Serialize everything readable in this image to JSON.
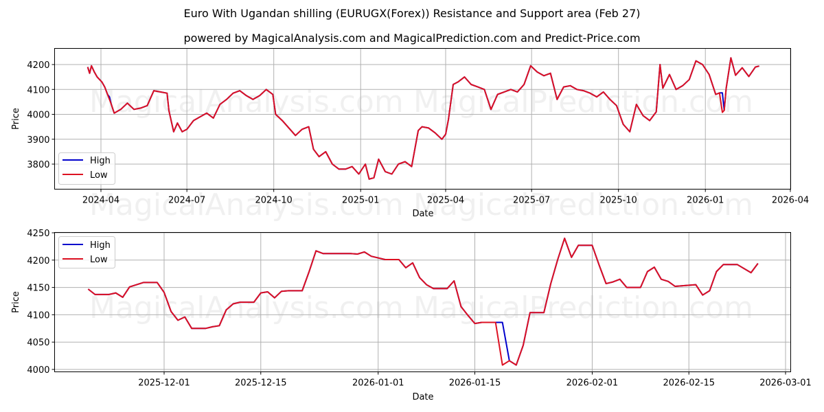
{
  "header": {
    "title": "Euro With Ugandan shilling (EURUGX(Forex)) Resistance and Support area (Feb 27)",
    "subtitle": "powered by MagicalAnalysis.com and MagicalPrediction.com and Predict-Price.com"
  },
  "watermarks": [
    "MagicalAnalysis.com",
    "MagicalPrediction.com"
  ],
  "colors": {
    "high": "#0000cc",
    "low": "#dd1122",
    "grid": "#b0b0b0"
  },
  "chart_data": [
    {
      "type": "line",
      "title": "Euro With Ugandan shilling (EURUGX(Forex)) Resistance and Support area (Feb 27)",
      "xlabel": "Date",
      "ylabel": "Price",
      "ylim": [
        3700,
        4270
      ],
      "xlim": [
        "2024-02-15",
        "2026-04-01"
      ],
      "grid": true,
      "legend_position": "lower left",
      "x_ticks": [
        "2024-04",
        "2024-07",
        "2024-10",
        "2025-01",
        "2025-04",
        "2025-07",
        "2025-10",
        "2026-01",
        "2026-04"
      ],
      "y_ticks": [
        3800,
        3900,
        4000,
        4100,
        4200
      ],
      "legend": [
        "High",
        "Low"
      ],
      "x": [
        "2024-03-18",
        "2024-03-20",
        "2024-03-22",
        "2024-03-25",
        "2024-03-28",
        "2024-04-02",
        "2024-04-05",
        "2024-04-08",
        "2024-04-10",
        "2024-04-12",
        "2024-04-15",
        "2024-04-22",
        "2024-04-29",
        "2024-05-06",
        "2024-05-13",
        "2024-05-20",
        "2024-05-27",
        "2024-06-03",
        "2024-06-10",
        "2024-06-12",
        "2024-06-17",
        "2024-06-21",
        "2024-06-26",
        "2024-07-01",
        "2024-07-08",
        "2024-07-15",
        "2024-07-22",
        "2024-07-29",
        "2024-08-05",
        "2024-08-12",
        "2024-08-19",
        "2024-08-26",
        "2024-09-02",
        "2024-09-09",
        "2024-09-16",
        "2024-09-23",
        "2024-09-30",
        "2024-10-03",
        "2024-10-10",
        "2024-10-17",
        "2024-10-24",
        "2024-10-31",
        "2024-11-07",
        "2024-11-12",
        "2024-11-18",
        "2024-11-25",
        "2024-12-02",
        "2024-12-09",
        "2024-12-16",
        "2024-12-23",
        "2024-12-30",
        "2025-01-06",
        "2025-01-10",
        "2025-01-15",
        "2025-01-20",
        "2025-01-27",
        "2025-02-03",
        "2025-02-10",
        "2025-02-17",
        "2025-02-24",
        "2025-03-03",
        "2025-03-07",
        "2025-03-14",
        "2025-03-21",
        "2025-03-28",
        "2025-04-01",
        "2025-04-04",
        "2025-04-09",
        "2025-04-14",
        "2025-04-21",
        "2025-04-28",
        "2025-05-05",
        "2025-05-12",
        "2025-05-19",
        "2025-05-26",
        "2025-06-02",
        "2025-06-09",
        "2025-06-16",
        "2025-06-23",
        "2025-06-30",
        "2025-07-07",
        "2025-07-14",
        "2025-07-21",
        "2025-07-28",
        "2025-08-04",
        "2025-08-11",
        "2025-08-18",
        "2025-08-25",
        "2025-09-01",
        "2025-09-08",
        "2025-09-15",
        "2025-09-22",
        "2025-09-29",
        "2025-10-06",
        "2025-10-13",
        "2025-10-20",
        "2025-10-27",
        "2025-11-03",
        "2025-11-10",
        "2025-11-14",
        "2025-11-17",
        "2025-11-24",
        "2025-12-01",
        "2025-12-08",
        "2025-12-15",
        "2025-12-22",
        "2025-12-29",
        "2026-01-05",
        "2026-01-12",
        "2026-01-16",
        "2026-01-19",
        "2026-01-21",
        "2026-01-23",
        "2026-01-28",
        "2026-02-02",
        "2026-02-09",
        "2026-02-16",
        "2026-02-23",
        "2026-02-27"
      ],
      "series": [
        {
          "name": "High",
          "values": [
            4190,
            4165,
            4195,
            4170,
            4150,
            4130,
            4110,
            4080,
            4070,
            4040,
            4005,
            4020,
            4045,
            4020,
            4025,
            4035,
            4095,
            4090,
            4085,
            4015,
            3930,
            3965,
            3930,
            3940,
            3975,
            3990,
            4005,
            3985,
            4040,
            4060,
            4085,
            4095,
            4075,
            4060,
            4075,
            4100,
            4080,
            4000,
            3975,
            3945,
            3915,
            3940,
            3950,
            3860,
            3830,
            3850,
            3800,
            3780,
            3780,
            3790,
            3760,
            3800,
            3740,
            3745,
            3820,
            3770,
            3760,
            3800,
            3810,
            3790,
            3935,
            3950,
            3945,
            3925,
            3900,
            3920,
            3980,
            4120,
            4130,
            4150,
            4120,
            4110,
            4100,
            4020,
            4080,
            4090,
            4100,
            4090,
            4120,
            4195,
            4170,
            4155,
            4165,
            4060,
            4110,
            4115,
            4100,
            4095,
            4085,
            4070,
            4090,
            4060,
            4035,
            3960,
            3930,
            4040,
            3995,
            3975,
            4010,
            4200,
            4105,
            4160,
            4100,
            4115,
            4140,
            4215,
            4200,
            4160,
            4080,
            4086,
            4086,
            4016,
            4104,
            4227,
            4157,
            4187,
            4152,
            4190,
            4194
          ]
        },
        {
          "name": "Low",
          "values": [
            4190,
            4165,
            4195,
            4170,
            4150,
            4130,
            4110,
            4080,
            4060,
            4040,
            4005,
            4020,
            4045,
            4020,
            4025,
            4035,
            4095,
            4090,
            4085,
            4015,
            3930,
            3965,
            3930,
            3940,
            3975,
            3990,
            4005,
            3985,
            4040,
            4060,
            4085,
            4095,
            4075,
            4060,
            4075,
            4100,
            4080,
            4000,
            3975,
            3945,
            3915,
            3940,
            3950,
            3860,
            3830,
            3850,
            3800,
            3780,
            3780,
            3790,
            3760,
            3800,
            3740,
            3745,
            3820,
            3770,
            3760,
            3800,
            3810,
            3790,
            3935,
            3950,
            3945,
            3925,
            3900,
            3920,
            3980,
            4120,
            4130,
            4150,
            4120,
            4110,
            4100,
            4020,
            4080,
            4090,
            4100,
            4090,
            4120,
            4195,
            4170,
            4155,
            4165,
            4060,
            4110,
            4115,
            4100,
            4095,
            4085,
            4070,
            4090,
            4060,
            4035,
            3960,
            3930,
            4040,
            3995,
            3975,
            4010,
            4200,
            4105,
            4160,
            4100,
            4115,
            4140,
            4215,
            4200,
            4160,
            4080,
            4086,
            4008,
            4016,
            4104,
            4227,
            4157,
            4187,
            4152,
            4190,
            4194
          ]
        }
      ]
    },
    {
      "type": "line",
      "title": "",
      "xlabel": "Date",
      "ylabel": "Price",
      "ylim": [
        3997,
        4252
      ],
      "xlim": [
        "2025-11-18",
        "2026-03-02"
      ],
      "grid": true,
      "legend_position": "upper left",
      "x_ticks": [
        "2025-12-01",
        "2025-12-15",
        "2026-01-01",
        "2026-01-15",
        "2026-02-01",
        "2026-02-15",
        "2026-03-01"
      ],
      "y_ticks": [
        4000,
        4050,
        4100,
        4150,
        4200,
        4250
      ],
      "legend": [
        "High",
        "Low"
      ],
      "x": [
        "2025-11-20",
        "2025-11-21",
        "2025-11-23",
        "2025-11-24",
        "2025-11-25",
        "2025-11-26",
        "2025-11-28",
        "2025-11-30",
        "2025-12-01",
        "2025-12-02",
        "2025-12-03",
        "2025-12-04",
        "2025-12-05",
        "2025-12-07",
        "2025-12-08",
        "2025-12-09",
        "2025-12-10",
        "2025-12-11",
        "2025-12-12",
        "2025-12-14",
        "2025-12-15",
        "2025-12-16",
        "2025-12-17",
        "2025-12-18",
        "2025-12-19",
        "2025-12-21",
        "2025-12-22",
        "2025-12-23",
        "2025-12-24",
        "2025-12-28",
        "2025-12-29",
        "2025-12-30",
        "2025-12-31",
        "2026-01-02",
        "2026-01-04",
        "2026-01-05",
        "2026-01-06",
        "2026-01-07",
        "2026-01-08",
        "2026-01-09",
        "2026-01-11",
        "2026-01-12",
        "2026-01-13",
        "2026-01-14",
        "2026-01-15",
        "2026-01-16",
        "2026-01-18",
        "2026-01-19",
        "2026-01-20",
        "2026-01-21",
        "2026-01-22",
        "2026-01-23",
        "2026-01-25",
        "2026-01-26",
        "2026-01-27",
        "2026-01-28",
        "2026-01-29",
        "2026-01-30",
        "2026-02-01",
        "2026-02-02",
        "2026-02-03",
        "2026-02-04",
        "2026-02-05",
        "2026-02-06",
        "2026-02-08",
        "2026-02-09",
        "2026-02-10",
        "2026-02-11",
        "2026-02-12",
        "2026-02-13",
        "2026-02-16",
        "2026-02-17",
        "2026-02-18",
        "2026-02-19",
        "2026-02-20",
        "2026-02-22",
        "2026-02-24",
        "2026-02-25"
      ],
      "series": [
        {
          "name": "High",
          "values": [
            4147,
            4137,
            4137,
            4140,
            4132,
            4151,
            4159,
            4159,
            4141,
            4106,
            4090,
            4096,
            4075,
            4075,
            4078,
            4080,
            4109,
            4120,
            4123,
            4123,
            4140,
            4142,
            4131,
            4143,
            4144,
            4144,
            4179,
            4217,
            4212,
            4212,
            4211,
            4215,
            4207,
            4201,
            4201,
            4186,
            4195,
            4168,
            4155,
            4148,
            4148,
            4162,
            4115,
            4099,
            4084,
            4086,
            4086,
            4086,
            4016,
            4008,
            4044,
            4104,
            4104,
            4157,
            4201,
            4240,
            4205,
            4227,
            4227,
            4191,
            4157,
            4160,
            4165,
            4150,
            4150,
            4179,
            4187,
            4165,
            4161,
            4152,
            4155,
            4136,
            4144,
            4179,
            4192,
            4192,
            4177,
            4194
          ]
        },
        {
          "name": "Low",
          "values": [
            4147,
            4137,
            4137,
            4140,
            4132,
            4151,
            4159,
            4159,
            4141,
            4106,
            4090,
            4096,
            4075,
            4075,
            4078,
            4080,
            4109,
            4120,
            4123,
            4123,
            4140,
            4142,
            4131,
            4143,
            4144,
            4144,
            4179,
            4217,
            4212,
            4212,
            4211,
            4215,
            4207,
            4201,
            4201,
            4186,
            4195,
            4168,
            4155,
            4148,
            4148,
            4162,
            4115,
            4099,
            4084,
            4086,
            4086,
            4008,
            4016,
            4008,
            4044,
            4104,
            4104,
            4157,
            4201,
            4240,
            4205,
            4227,
            4227,
            4191,
            4157,
            4160,
            4165,
            4150,
            4150,
            4179,
            4187,
            4165,
            4161,
            4152,
            4155,
            4136,
            4144,
            4179,
            4192,
            4192,
            4177,
            4194
          ]
        }
      ]
    }
  ]
}
